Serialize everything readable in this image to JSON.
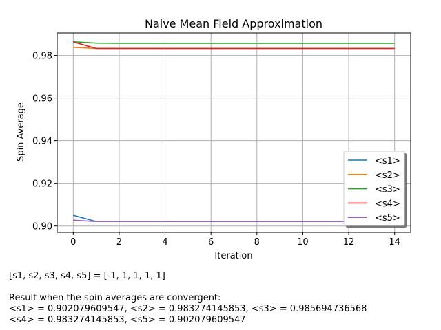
{
  "chart_data": {
    "type": "line",
    "title": "Naive Mean Field Approximation",
    "xlabel": "Iteration",
    "ylabel": "Spin Average",
    "xlim": [
      -0.7,
      14.7
    ],
    "ylim": [
      0.897,
      0.9905
    ],
    "xticks": [
      0,
      2,
      4,
      6,
      8,
      10,
      12,
      14
    ],
    "yticks": [
      0.9,
      0.92,
      0.94,
      0.96,
      0.98
    ],
    "ytick_labels": [
      "0.90",
      "0.92",
      "0.94",
      "0.96",
      "0.98"
    ],
    "grid": true,
    "legend_position": "lower-right",
    "x": [
      0,
      1,
      2,
      3,
      4,
      5,
      6,
      7,
      8,
      9,
      10,
      11,
      12,
      13,
      14
    ],
    "series": [
      {
        "name": "<s1>",
        "color": "#1f77b4",
        "values": [
          0.905,
          0.90208,
          0.90208,
          0.90208,
          0.90208,
          0.90208,
          0.90208,
          0.90208,
          0.90208,
          0.90208,
          0.90208,
          0.90208,
          0.90208,
          0.90208,
          0.90208
        ]
      },
      {
        "name": "<s2>",
        "color": "#ff7f0e",
        "values": [
          0.9838,
          0.98327,
          0.98327,
          0.98327,
          0.98327,
          0.98327,
          0.98327,
          0.98327,
          0.98327,
          0.98327,
          0.98327,
          0.98327,
          0.98327,
          0.98327,
          0.98327
        ]
      },
      {
        "name": "<s3>",
        "color": "#2ca02c",
        "values": [
          0.9864,
          0.98575,
          0.98569,
          0.98569,
          0.98569,
          0.98569,
          0.98569,
          0.98569,
          0.98569,
          0.98569,
          0.98569,
          0.98569,
          0.98569,
          0.98569,
          0.98569
        ]
      },
      {
        "name": "<s4>",
        "color": "#d62728",
        "values": [
          0.9863,
          0.98327,
          0.98327,
          0.98327,
          0.98327,
          0.98327,
          0.98327,
          0.98327,
          0.98327,
          0.98327,
          0.98327,
          0.98327,
          0.98327,
          0.98327,
          0.98327
        ]
      },
      {
        "name": "<s5>",
        "color": "#9467bd",
        "values": [
          0.9027,
          0.90208,
          0.90208,
          0.90208,
          0.90208,
          0.90208,
          0.90208,
          0.90208,
          0.90208,
          0.90208,
          0.90208,
          0.90208,
          0.90208,
          0.90208,
          0.90208
        ]
      }
    ]
  },
  "caption": {
    "line1": "[s1, s2, s3, s4, s5] = [-1, 1, 1, 1, 1]",
    "line2": "Result when the spin averages are convergent:",
    "line3": "<s1> = 0.902079609547, <s2> = 0.983274145853, <s3> = 0.985694736568",
    "line4": "<s4> = 0.983274145853, <s5> = 0.902079609547"
  }
}
